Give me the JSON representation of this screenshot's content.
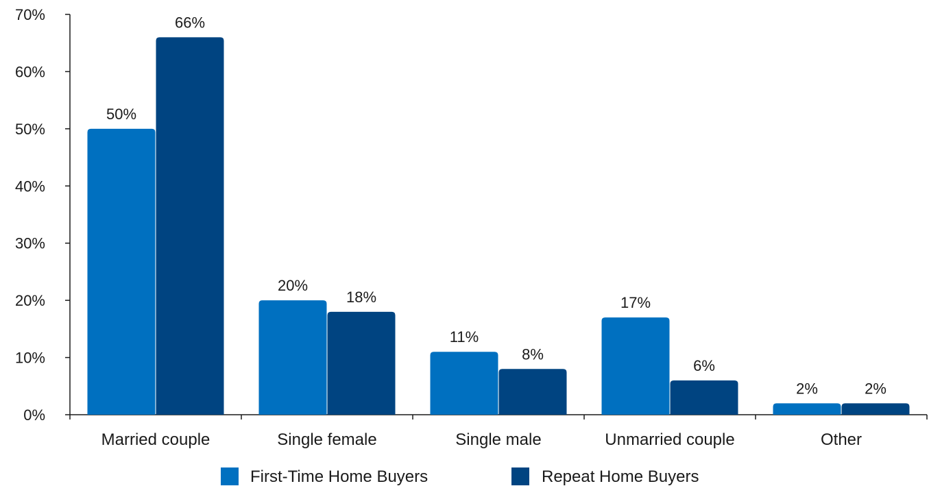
{
  "chart_data": {
    "type": "bar",
    "title": "",
    "xlabel": "",
    "ylabel": "",
    "categories": [
      "Married couple",
      "Single female",
      "Single male",
      "Unmarried couple",
      "Other"
    ],
    "series": [
      {
        "name": "First-Time Home Buyers",
        "color": "#0070C0",
        "values": [
          50,
          20,
          11,
          17,
          2
        ],
        "labels": [
          "50%",
          "20%",
          "11%",
          "17%",
          "2%"
        ]
      },
      {
        "name": "Repeat Home Buyers",
        "color": "#004481",
        "values": [
          66,
          18,
          8,
          6,
          2
        ],
        "labels": [
          "66%",
          "18%",
          "8%",
          "6%",
          "2%"
        ]
      }
    ],
    "ylim": [
      0,
      70
    ],
    "yticks": [
      0,
      10,
      20,
      30,
      40,
      50,
      60,
      70
    ],
    "ytick_labels": [
      "0%",
      "10%",
      "20%",
      "30%",
      "40%",
      "50%",
      "60%",
      "70%"
    ],
    "grid": false,
    "legend_position": "bottom-center"
  }
}
